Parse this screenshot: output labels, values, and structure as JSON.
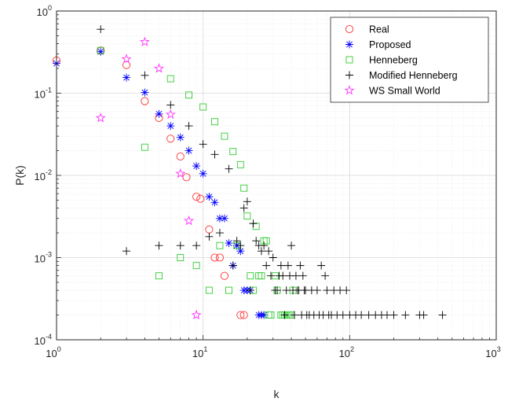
{
  "chart_data": {
    "type": "scatter",
    "title": "",
    "xlabel": "k",
    "ylabel": "P(k)",
    "xscale": "log",
    "yscale": "log",
    "xlim": [
      1,
      1000
    ],
    "ylim": [
      0.0001,
      1
    ],
    "grid": true,
    "minor_grid": true,
    "legend_position": "top-right",
    "x_ticks": [
      {
        "value": 1,
        "base": "10",
        "exp": "0"
      },
      {
        "value": 10,
        "base": "10",
        "exp": "1"
      },
      {
        "value": 100,
        "base": "10",
        "exp": "2"
      },
      {
        "value": 1000,
        "base": "10",
        "exp": "3"
      }
    ],
    "y_ticks": [
      {
        "value": 0.0001,
        "base": "10",
        "exp": "-4"
      },
      {
        "value": 0.001,
        "base": "10",
        "exp": "-3"
      },
      {
        "value": 0.01,
        "base": "10",
        "exp": "-2"
      },
      {
        "value": 0.1,
        "base": "10",
        "exp": "-1"
      },
      {
        "value": 1,
        "base": "10",
        "exp": "0"
      }
    ],
    "series": [
      {
        "name": "Real",
        "marker": "circle",
        "color": "#ff3333",
        "points": [
          [
            1,
            0.25
          ],
          [
            2,
            0.33
          ],
          [
            3,
            0.22
          ],
          [
            4,
            0.08
          ],
          [
            5,
            0.05
          ],
          [
            6,
            0.028
          ],
          [
            7,
            0.017
          ],
          [
            7.7,
            0.0095
          ],
          [
            9,
            0.0055
          ],
          [
            9.6,
            0.0052
          ],
          [
            11,
            0.0022
          ],
          [
            12,
            0.001
          ],
          [
            13,
            0.001
          ],
          [
            14,
            0.0006
          ],
          [
            18,
            0.0002
          ],
          [
            19,
            0.0002
          ]
        ]
      },
      {
        "name": "Proposed",
        "marker": "asterisk",
        "color": "#0000ff",
        "points": [
          [
            1,
            0.23
          ],
          [
            2,
            0.32
          ],
          [
            3,
            0.155
          ],
          [
            4,
            0.102
          ],
          [
            5,
            0.056
          ],
          [
            6,
            0.04
          ],
          [
            7,
            0.029
          ],
          [
            8,
            0.02
          ],
          [
            9,
            0.013
          ],
          [
            10,
            0.0105
          ],
          [
            11,
            0.0055
          ],
          [
            12,
            0.0047
          ],
          [
            13,
            0.003
          ],
          [
            14,
            0.003
          ],
          [
            15,
            0.0015
          ],
          [
            16,
            0.0008
          ],
          [
            17,
            0.0014
          ],
          [
            18,
            0.0012
          ],
          [
            19,
            0.0004
          ],
          [
            20,
            0.0004
          ],
          [
            21,
            0.0004
          ],
          [
            24,
            0.0002
          ],
          [
            25,
            0.0002
          ],
          [
            26,
            0.0002
          ]
        ]
      },
      {
        "name": "Henneberg",
        "marker": "square",
        "color": "#33cc33",
        "points": [
          [
            2,
            0.33
          ],
          [
            4,
            0.022
          ],
          [
            5,
            0.0006
          ],
          [
            6,
            0.15
          ],
          [
            7,
            0.001
          ],
          [
            8,
            0.095
          ],
          [
            9,
            0.0008
          ],
          [
            10,
            0.068
          ],
          [
            11,
            0.0004
          ],
          [
            12,
            0.045
          ],
          [
            13,
            0.0014
          ],
          [
            14,
            0.03
          ],
          [
            15,
            0.0004
          ],
          [
            16,
            0.0195
          ],
          [
            17,
            0.0014
          ],
          [
            18,
            0.0135
          ],
          [
            19,
            0.007
          ],
          [
            20,
            0.0032
          ],
          [
            21,
            0.0006
          ],
          [
            22,
            0.0004
          ],
          [
            23,
            0.0024
          ],
          [
            24,
            0.0006
          ],
          [
            25,
            0.0006
          ],
          [
            26,
            0.0016
          ],
          [
            27,
            0.0016
          ],
          [
            28,
            0.0002
          ],
          [
            29,
            0.0002
          ],
          [
            31,
            0.0006
          ],
          [
            32,
            0.0004
          ],
          [
            34,
            0.0002
          ],
          [
            35,
            0.0002
          ],
          [
            36,
            0.0002
          ],
          [
            37,
            0.0002
          ],
          [
            38,
            0.0002
          ],
          [
            39,
            0.0002
          ],
          [
            40,
            0.0002
          ],
          [
            41,
            0.0004
          ]
        ]
      },
      {
        "name": "Modified Henneberg",
        "marker": "plus",
        "color": "#000000",
        "points": [
          [
            2,
            0.6
          ],
          [
            3,
            0.0012
          ],
          [
            4,
            0.165
          ],
          [
            5,
            0.0014
          ],
          [
            6,
            0.072
          ],
          [
            7,
            0.0014
          ],
          [
            8,
            0.04
          ],
          [
            9,
            0.0014
          ],
          [
            10,
            0.024
          ],
          [
            11,
            0.0018
          ],
          [
            12,
            0.018
          ],
          [
            13,
            0.002
          ],
          [
            15,
            0.012
          ],
          [
            16,
            0.0008
          ],
          [
            17,
            0.0016
          ],
          [
            18,
            0.0014
          ],
          [
            19,
            0.004
          ],
          [
            20,
            0.0048
          ],
          [
            21,
            0.0004
          ],
          [
            22,
            0.0026
          ],
          [
            23,
            0.0016
          ],
          [
            24,
            0.0014
          ],
          [
            25,
            0.0012
          ],
          [
            26,
            0.0014
          ],
          [
            27,
            0.0008
          ],
          [
            28,
            0.0012
          ],
          [
            29,
            0.0006
          ],
          [
            30,
            0.001
          ],
          [
            31,
            0.0004
          ],
          [
            32,
            0.0004
          ],
          [
            33,
            0.0006
          ],
          [
            34,
            0.0008
          ],
          [
            35,
            0.0006
          ],
          [
            36,
            0.0002
          ],
          [
            37,
            0.0004
          ],
          [
            38,
            0.0008
          ],
          [
            39,
            0.0006
          ],
          [
            40,
            0.0014
          ],
          [
            41,
            0.0004
          ],
          [
            42,
            0.0002
          ],
          [
            43,
            0.0006
          ],
          [
            44,
            0.0004
          ],
          [
            45,
            0.0004
          ],
          [
            46,
            0.0008
          ],
          [
            47,
            0.0002
          ],
          [
            48,
            0.0006
          ],
          [
            49,
            0.0004
          ],
          [
            50,
            0.0004
          ],
          [
            51,
            0.0002
          ],
          [
            53,
            0.0002
          ],
          [
            55,
            0.0004
          ],
          [
            57,
            0.0002
          ],
          [
            60,
            0.0004
          ],
          [
            62,
            0.0002
          ],
          [
            64,
            0.0008
          ],
          [
            66,
            0.0002
          ],
          [
            68,
            0.0006
          ],
          [
            70,
            0.0004
          ],
          [
            72,
            0.0002
          ],
          [
            75,
            0.0002
          ],
          [
            78,
            0.0004
          ],
          [
            82,
            0.0002
          ],
          [
            86,
            0.0004
          ],
          [
            90,
            0.0002
          ],
          [
            95,
            0.0004
          ],
          [
            100,
            0.0002
          ],
          [
            110,
            0.0002
          ],
          [
            120,
            0.0002
          ],
          [
            135,
            0.0002
          ],
          [
            150,
            0.0002
          ],
          [
            165,
            0.0002
          ],
          [
            180,
            0.0002
          ],
          [
            200,
            0.0002
          ],
          [
            240,
            0.0002
          ],
          [
            300,
            0.0002
          ],
          [
            320,
            0.0002
          ],
          [
            430,
            0.0002
          ]
        ]
      },
      {
        "name": "WS Small World",
        "marker": "star",
        "color": "#ff33ff",
        "points": [
          [
            2,
            0.05
          ],
          [
            3,
            0.26
          ],
          [
            4,
            0.42
          ],
          [
            5,
            0.2
          ],
          [
            6,
            0.055
          ],
          [
            7,
            0.0105
          ],
          [
            8,
            0.0028
          ],
          [
            9,
            0.0002
          ]
        ]
      }
    ]
  }
}
